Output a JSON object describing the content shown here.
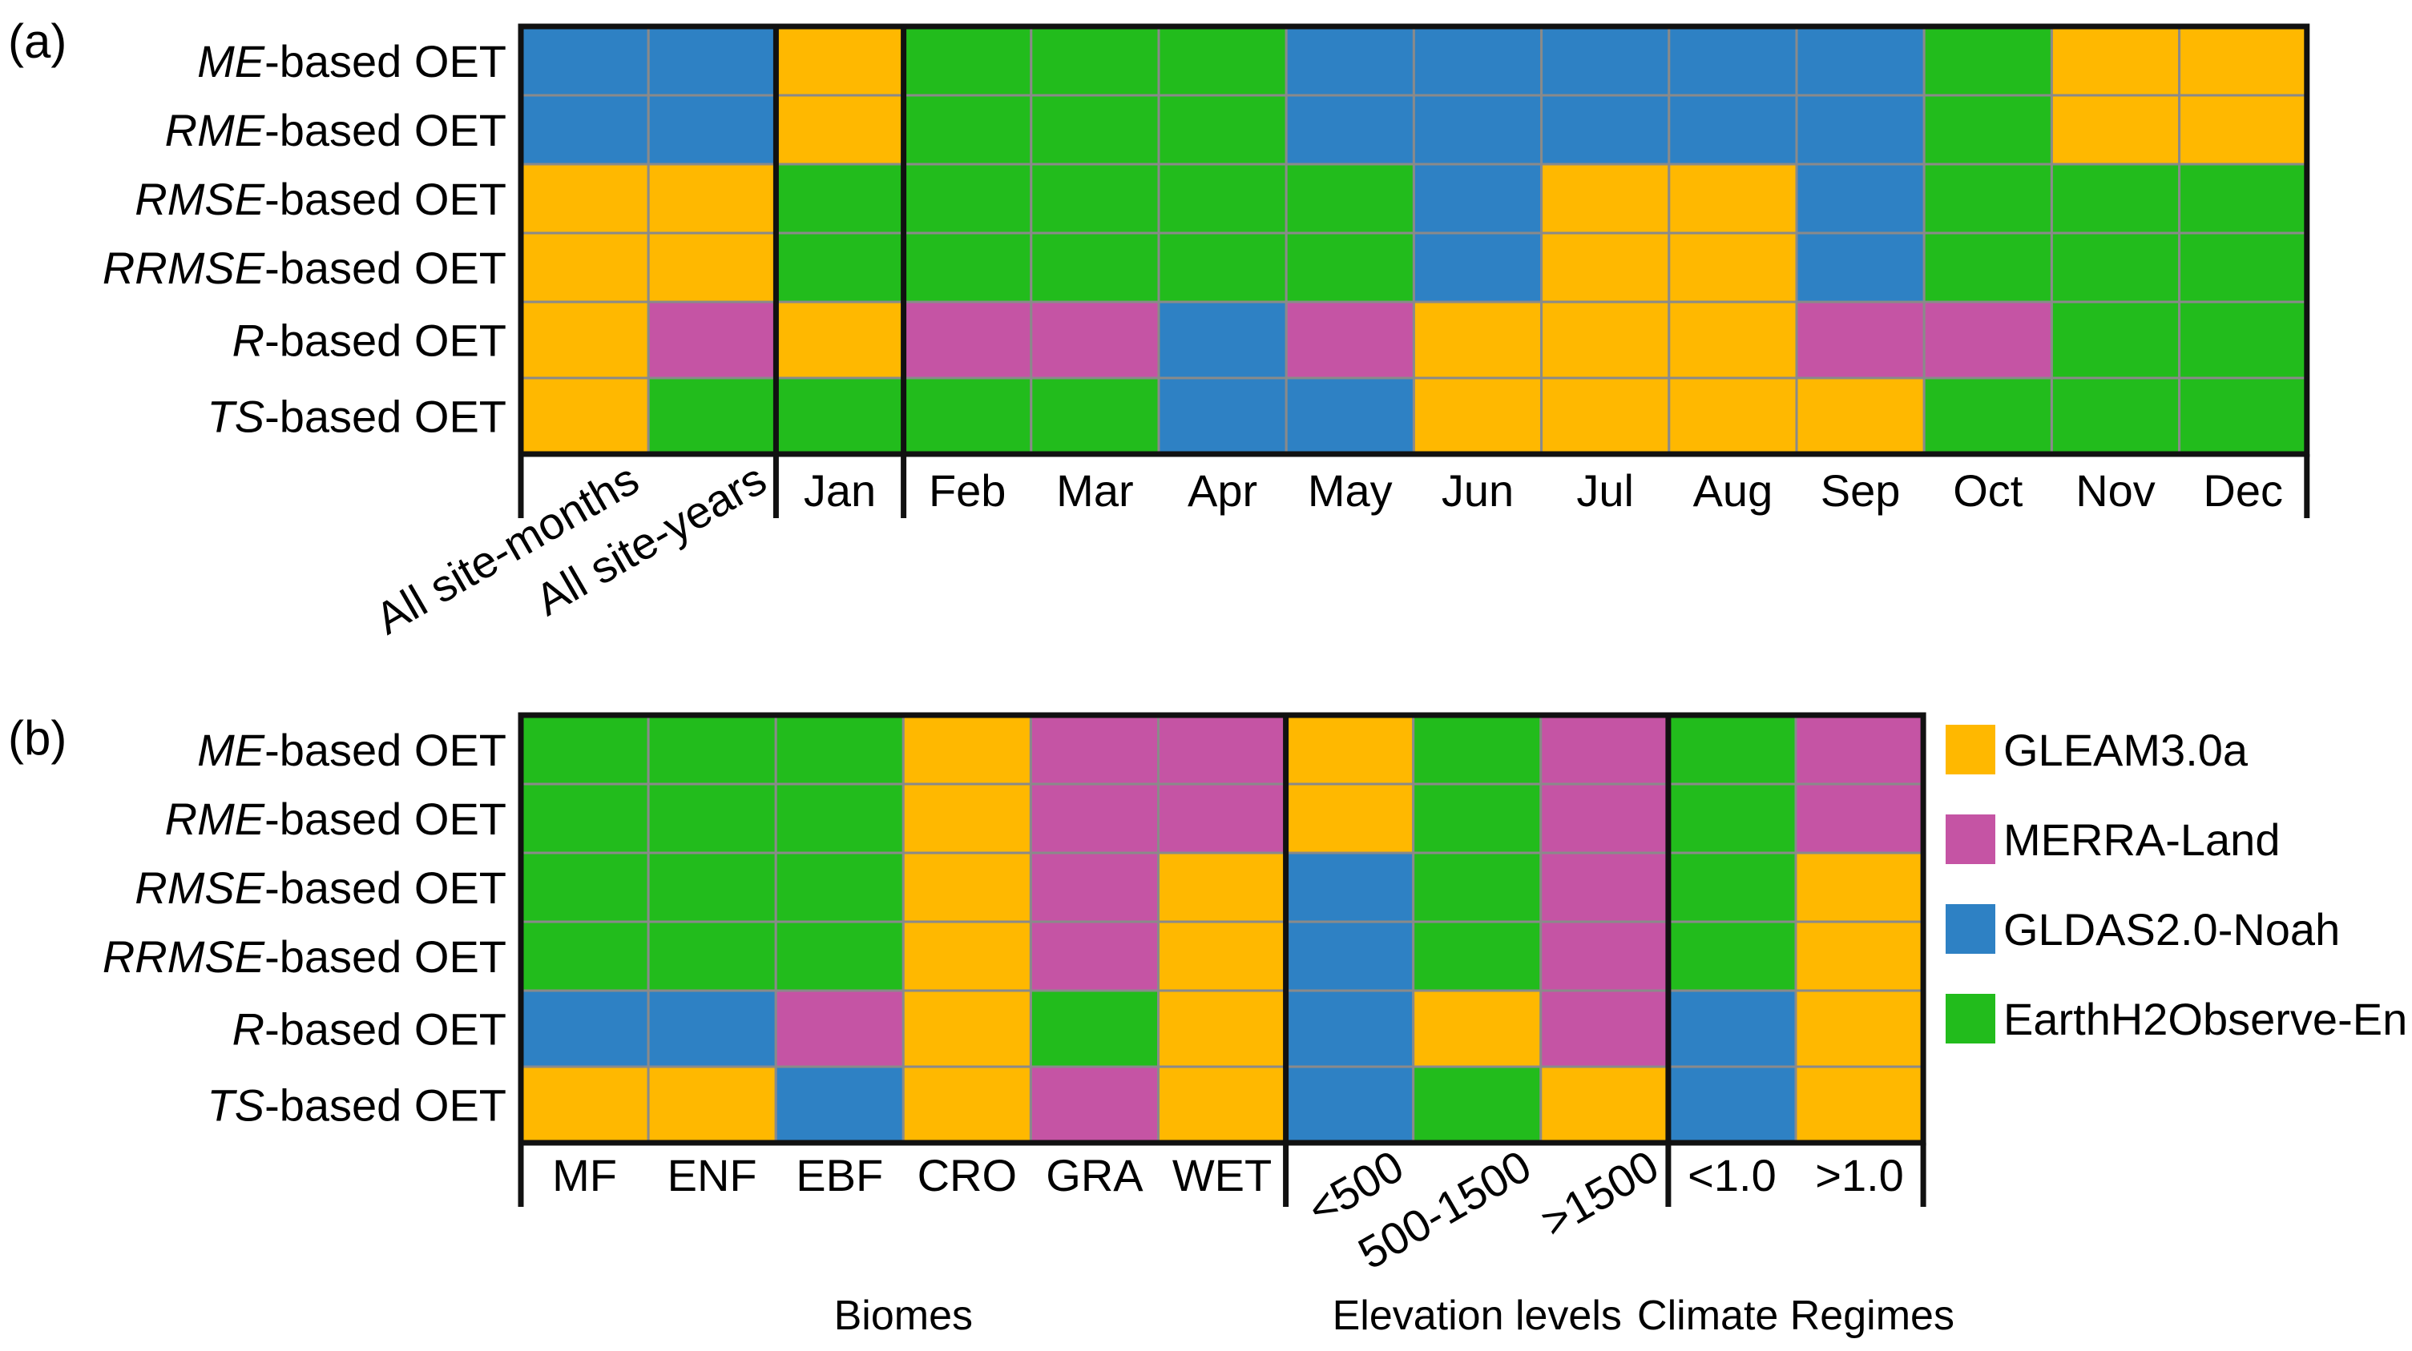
{
  "colors": {
    "GLEAM3.0a": "#FFB800",
    "MERRA-Land": "#C554A4",
    "GLDAS2.0-Noah": "#2E81C4",
    "EarthH2Observe-En": "#22BC1C"
  },
  "legend": [
    "GLEAM3.0a",
    "MERRA-Land",
    "GLDAS2.0-Noah",
    "EarthH2Observe-En"
  ],
  "chart_data": [
    {
      "type": "heatmap",
      "panel_label": "(a)",
      "rows": [
        {
          "prefix": "ME",
          "suffix": "-based OET"
        },
        {
          "prefix": "RME",
          "suffix": "-based OET"
        },
        {
          "prefix": "RMSE",
          "suffix": "-based OET"
        },
        {
          "prefix": "RRMSE",
          "suffix": "-based OET"
        },
        {
          "prefix": "R",
          "suffix": "-based OET"
        },
        {
          "prefix": "TS",
          "suffix": "-based OET"
        }
      ],
      "columns": [
        "All site-months",
        "All site-years",
        "Jan",
        "Feb",
        "Mar",
        "Apr",
        "May",
        "Jun",
        "Jul",
        "Aug",
        "Sep",
        "Oct",
        "Nov",
        "Dec"
      ],
      "rotated_columns": [
        0,
        1
      ],
      "group_breaks": [
        1,
        2
      ],
      "groups": [],
      "values": [
        [
          "GLDAS2.0-Noah",
          "GLDAS2.0-Noah",
          "GLEAM3.0a",
          "EarthH2Observe-En",
          "EarthH2Observe-En",
          "EarthH2Observe-En",
          "GLDAS2.0-Noah",
          "GLDAS2.0-Noah",
          "GLDAS2.0-Noah",
          "GLDAS2.0-Noah",
          "GLDAS2.0-Noah",
          "EarthH2Observe-En",
          "GLEAM3.0a",
          "GLEAM3.0a"
        ],
        [
          "GLDAS2.0-Noah",
          "GLDAS2.0-Noah",
          "GLEAM3.0a",
          "EarthH2Observe-En",
          "EarthH2Observe-En",
          "EarthH2Observe-En",
          "GLDAS2.0-Noah",
          "GLDAS2.0-Noah",
          "GLDAS2.0-Noah",
          "GLDAS2.0-Noah",
          "GLDAS2.0-Noah",
          "EarthH2Observe-En",
          "GLEAM3.0a",
          "GLEAM3.0a"
        ],
        [
          "GLEAM3.0a",
          "GLEAM3.0a",
          "EarthH2Observe-En",
          "EarthH2Observe-En",
          "EarthH2Observe-En",
          "EarthH2Observe-En",
          "EarthH2Observe-En",
          "GLDAS2.0-Noah",
          "GLEAM3.0a",
          "GLEAM3.0a",
          "GLDAS2.0-Noah",
          "EarthH2Observe-En",
          "EarthH2Observe-En",
          "EarthH2Observe-En"
        ],
        [
          "GLEAM3.0a",
          "GLEAM3.0a",
          "EarthH2Observe-En",
          "EarthH2Observe-En",
          "EarthH2Observe-En",
          "EarthH2Observe-En",
          "EarthH2Observe-En",
          "GLDAS2.0-Noah",
          "GLEAM3.0a",
          "GLEAM3.0a",
          "GLDAS2.0-Noah",
          "EarthH2Observe-En",
          "EarthH2Observe-En",
          "EarthH2Observe-En"
        ],
        [
          "GLEAM3.0a",
          "MERRA-Land",
          "GLEAM3.0a",
          "MERRA-Land",
          "MERRA-Land",
          "GLDAS2.0-Noah",
          "MERRA-Land",
          "GLEAM3.0a",
          "GLEAM3.0a",
          "GLEAM3.0a",
          "MERRA-Land",
          "MERRA-Land",
          "EarthH2Observe-En",
          "EarthH2Observe-En"
        ],
        [
          "GLEAM3.0a",
          "EarthH2Observe-En",
          "EarthH2Observe-En",
          "EarthH2Observe-En",
          "EarthH2Observe-En",
          "GLDAS2.0-Noah",
          "GLDAS2.0-Noah",
          "GLEAM3.0a",
          "GLEAM3.0a",
          "GLEAM3.0a",
          "GLEAM3.0a",
          "EarthH2Observe-En",
          "EarthH2Observe-En",
          "EarthH2Observe-En"
        ]
      ]
    },
    {
      "type": "heatmap",
      "panel_label": "(b)",
      "rows": [
        {
          "prefix": "ME",
          "suffix": "-based OET"
        },
        {
          "prefix": "RME",
          "suffix": "-based OET"
        },
        {
          "prefix": "RMSE",
          "suffix": "-based OET"
        },
        {
          "prefix": "RRMSE",
          "suffix": "-based OET"
        },
        {
          "prefix": "R",
          "suffix": "-based OET"
        },
        {
          "prefix": "TS",
          "suffix": "-based OET"
        }
      ],
      "columns": [
        "MF",
        "ENF",
        "EBF",
        "CRO",
        "GRA",
        "WET",
        "<500",
        "500-1500",
        ">1500",
        "<1.0",
        ">1.0"
      ],
      "rotated_columns": [
        6,
        7,
        8
      ],
      "group_breaks": [
        5,
        8
      ],
      "groups": [
        {
          "title": "Biomes",
          "start": 0,
          "end": 5
        },
        {
          "title": "Elevation levels",
          "start": 6,
          "end": 8
        },
        {
          "title": "Climate Regimes",
          "start": 9,
          "end": 10
        }
      ],
      "values": [
        [
          "EarthH2Observe-En",
          "EarthH2Observe-En",
          "EarthH2Observe-En",
          "GLEAM3.0a",
          "MERRA-Land",
          "MERRA-Land",
          "GLEAM3.0a",
          "EarthH2Observe-En",
          "MERRA-Land",
          "EarthH2Observe-En",
          "MERRA-Land"
        ],
        [
          "EarthH2Observe-En",
          "EarthH2Observe-En",
          "EarthH2Observe-En",
          "GLEAM3.0a",
          "MERRA-Land",
          "MERRA-Land",
          "GLEAM3.0a",
          "EarthH2Observe-En",
          "MERRA-Land",
          "EarthH2Observe-En",
          "MERRA-Land"
        ],
        [
          "EarthH2Observe-En",
          "EarthH2Observe-En",
          "EarthH2Observe-En",
          "GLEAM3.0a",
          "MERRA-Land",
          "GLEAM3.0a",
          "GLDAS2.0-Noah",
          "EarthH2Observe-En",
          "MERRA-Land",
          "EarthH2Observe-En",
          "GLEAM3.0a"
        ],
        [
          "EarthH2Observe-En",
          "EarthH2Observe-En",
          "EarthH2Observe-En",
          "GLEAM3.0a",
          "MERRA-Land",
          "GLEAM3.0a",
          "GLDAS2.0-Noah",
          "EarthH2Observe-En",
          "MERRA-Land",
          "EarthH2Observe-En",
          "GLEAM3.0a"
        ],
        [
          "GLDAS2.0-Noah",
          "GLDAS2.0-Noah",
          "MERRA-Land",
          "GLEAM3.0a",
          "EarthH2Observe-En",
          "GLEAM3.0a",
          "GLDAS2.0-Noah",
          "GLEAM3.0a",
          "MERRA-Land",
          "GLDAS2.0-Noah",
          "GLEAM3.0a"
        ],
        [
          "GLEAM3.0a",
          "GLEAM3.0a",
          "GLDAS2.0-Noah",
          "GLEAM3.0a",
          "MERRA-Land",
          "GLEAM3.0a",
          "GLDAS2.0-Noah",
          "EarthH2Observe-En",
          "GLEAM3.0a",
          "GLDAS2.0-Noah",
          "GLEAM3.0a"
        ]
      ]
    }
  ]
}
